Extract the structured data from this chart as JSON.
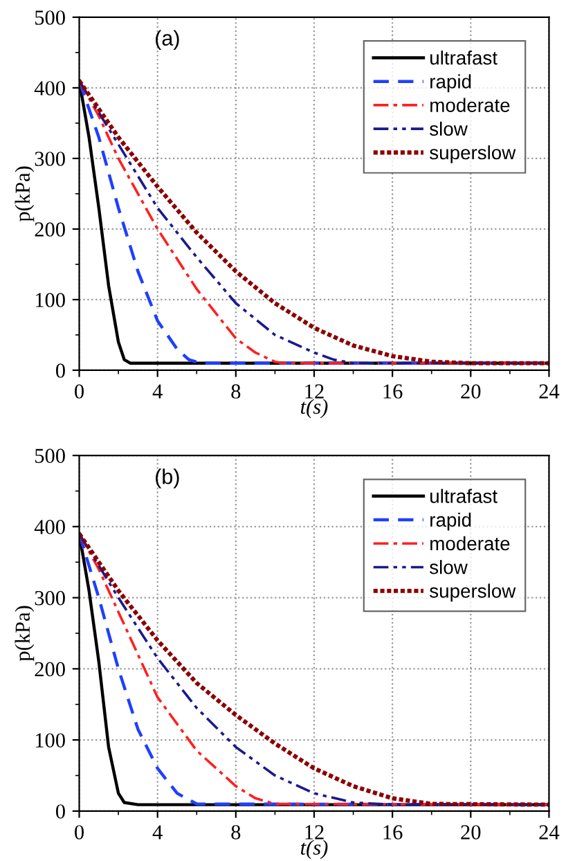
{
  "chart_data": [
    {
      "type": "line",
      "xlabel": "t(s)",
      "ylabel": "p(kPa)",
      "annotations": [
        "(a)"
      ],
      "xlim": [
        0,
        24
      ],
      "xticks": [
        0,
        4,
        8,
        12,
        16,
        20,
        24
      ],
      "ylim": [
        0,
        500
      ],
      "yticks": [
        0,
        100,
        200,
        300,
        400,
        500
      ],
      "grid": true,
      "legend": "top right",
      "series": [
        {
          "name": "ultrafast",
          "color": "#000000",
          "line_style": "solid",
          "x": [
            0,
            0.5,
            1,
            1.5,
            2,
            2.3,
            2.6,
            3,
            24
          ],
          "values": [
            410,
            330,
            230,
            120,
            40,
            15,
            10,
            10,
            10
          ]
        },
        {
          "name": "rapid",
          "color": "#1f3fff",
          "line_style": "dashed",
          "x": [
            0,
            1,
            2,
            3,
            4,
            5,
            5.6,
            6.2,
            24
          ],
          "values": [
            410,
            330,
            230,
            140,
            70,
            30,
            15,
            10,
            10
          ]
        },
        {
          "name": "moderate",
          "color": "#ff2020",
          "line_style": "dashdot",
          "x": [
            0,
            1,
            2,
            4,
            6,
            8,
            9,
            10,
            10.5,
            24
          ],
          "values": [
            410,
            360,
            300,
            200,
            115,
            45,
            25,
            12,
            10,
            10
          ]
        },
        {
          "name": "slow",
          "color": "#1a1a8c",
          "line_style": "dashdotdot",
          "x": [
            0,
            2,
            4,
            6,
            8,
            10,
            12,
            13,
            14,
            24
          ],
          "values": [
            410,
            320,
            230,
            160,
            95,
            50,
            25,
            15,
            10,
            10
          ]
        },
        {
          "name": "superslow",
          "color": "#8b0000",
          "line_style": "dotted",
          "x": [
            0,
            2,
            4,
            6,
            8,
            10,
            12,
            14,
            16,
            18,
            20,
            24
          ],
          "values": [
            410,
            330,
            260,
            195,
            140,
            95,
            60,
            35,
            20,
            12,
            10,
            10
          ]
        }
      ]
    },
    {
      "type": "line",
      "xlabel": "t(s)",
      "ylabel": "p(kPa)",
      "annotations": [
        "(b)"
      ],
      "xlim": [
        0,
        24
      ],
      "xticks": [
        0,
        4,
        8,
        12,
        16,
        20,
        24
      ],
      "ylim": [
        0,
        500
      ],
      "yticks": [
        0,
        100,
        200,
        300,
        400,
        500
      ],
      "grid": true,
      "legend": "top right",
      "series": [
        {
          "name": "ultrafast",
          "color": "#000000",
          "line_style": "solid",
          "x": [
            0,
            0.5,
            1,
            1.5,
            2,
            2.3,
            3,
            24
          ],
          "values": [
            390,
            310,
            210,
            90,
            25,
            12,
            9,
            9
          ]
        },
        {
          "name": "rapid",
          "color": "#1f3fff",
          "line_style": "dashed",
          "x": [
            0,
            1,
            2,
            3,
            4,
            5,
            6,
            24
          ],
          "values": [
            390,
            300,
            200,
            115,
            60,
            25,
            10,
            9
          ]
        },
        {
          "name": "moderate",
          "color": "#ff2020",
          "line_style": "dashdot",
          "x": [
            0,
            1,
            2,
            4,
            6,
            8,
            9,
            10,
            24
          ],
          "values": [
            390,
            340,
            280,
            160,
            85,
            35,
            18,
            10,
            9
          ]
        },
        {
          "name": "slow",
          "color": "#1a1a8c",
          "line_style": "dashdotdot",
          "x": [
            0,
            2,
            4,
            6,
            8,
            10,
            12,
            14,
            16,
            24
          ],
          "values": [
            390,
            300,
            215,
            145,
            90,
            50,
            25,
            12,
            9,
            9
          ]
        },
        {
          "name": "superslow",
          "color": "#8b0000",
          "line_style": "dotted",
          "x": [
            0,
            2,
            4,
            6,
            8,
            10,
            12,
            14,
            16,
            18,
            24
          ],
          "values": [
            390,
            310,
            240,
            180,
            135,
            95,
            60,
            35,
            18,
            10,
            9
          ]
        }
      ]
    }
  ]
}
